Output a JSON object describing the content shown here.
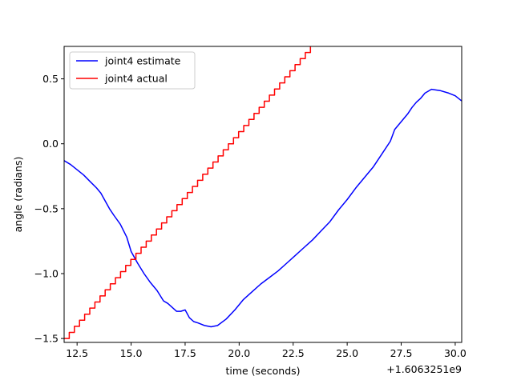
{
  "chart_data": {
    "type": "line",
    "title": "",
    "xlabel": "time (seconds)",
    "ylabel": "angle (radians)",
    "x_offset_label": "+1.6063251e9",
    "xlim": [
      11.9,
      30.3
    ],
    "ylim": [
      -1.53,
      0.75
    ],
    "xticks": [
      12.5,
      15.0,
      17.5,
      20.0,
      22.5,
      25.0,
      27.5,
      30.0
    ],
    "xtick_labels": [
      "12.5",
      "15.0",
      "17.5",
      "20.0",
      "22.5",
      "25.0",
      "27.5",
      "30.0"
    ],
    "yticks": [
      -1.5,
      -1.0,
      -0.5,
      0.0,
      0.5
    ],
    "ytick_labels": [
      "−1.5",
      "−1.0",
      "−0.5",
      "0.0",
      "0.5"
    ],
    "grid": false,
    "legend_position": "top-left",
    "series": [
      {
        "name": "joint4 estimate",
        "color": "#0000ff",
        "step": false,
        "x": [
          11.9,
          12.2,
          12.5,
          12.8,
          13.1,
          13.4,
          13.6,
          13.8,
          14.0,
          14.2,
          14.5,
          14.8,
          15.0,
          15.3,
          15.6,
          15.9,
          16.2,
          16.5,
          16.7,
          16.9,
          17.1,
          17.3,
          17.5,
          17.7,
          17.9,
          18.1,
          18.4,
          18.7,
          19.0,
          19.4,
          19.8,
          20.2,
          20.6,
          21.0,
          21.4,
          21.8,
          22.2,
          22.6,
          23.0,
          23.4,
          23.8,
          24.2,
          24.6,
          25.0,
          25.4,
          25.8,
          26.2,
          26.6,
          27.0,
          27.2,
          27.4,
          27.6,
          27.8,
          28.0,
          28.2,
          28.4,
          28.6,
          28.9,
          29.3,
          29.7,
          30.0,
          30.3
        ],
        "y": [
          -0.13,
          -0.16,
          -0.2,
          -0.24,
          -0.29,
          -0.34,
          -0.38,
          -0.44,
          -0.5,
          -0.55,
          -0.62,
          -0.72,
          -0.83,
          -0.92,
          -1.0,
          -1.07,
          -1.13,
          -1.21,
          -1.23,
          -1.26,
          -1.29,
          -1.29,
          -1.28,
          -1.34,
          -1.37,
          -1.38,
          -1.4,
          -1.41,
          -1.4,
          -1.35,
          -1.28,
          -1.2,
          -1.14,
          -1.08,
          -1.03,
          -0.98,
          -0.92,
          -0.86,
          -0.8,
          -0.74,
          -0.67,
          -0.6,
          -0.51,
          -0.43,
          -0.34,
          -0.26,
          -0.18,
          -0.08,
          0.02,
          0.11,
          0.15,
          0.19,
          0.23,
          0.28,
          0.32,
          0.35,
          0.39,
          0.42,
          0.41,
          0.39,
          0.37,
          0.33
        ]
      },
      {
        "name": "joint4 actual",
        "color": "#ff0000",
        "step": true,
        "x": [
          11.9,
          23.3
        ],
        "y": [
          -1.5,
          0.75
        ]
      }
    ]
  }
}
